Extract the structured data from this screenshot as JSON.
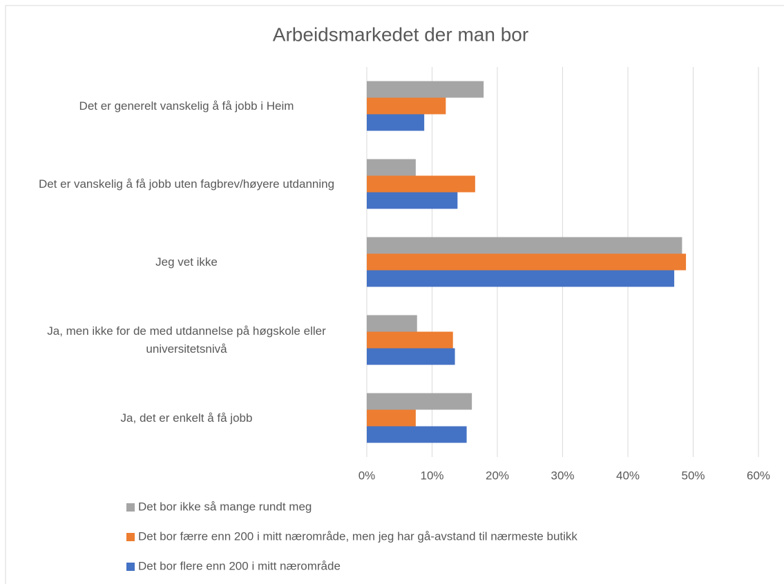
{
  "chart_data": {
    "type": "barh",
    "title": "Arbeidsmarkedet der man bor",
    "categories": [
      "Det er generelt vanskelig å få jobb i Heim",
      "Det er vanskelig å få jobb uten fagbrev/høyere utdanning",
      "Jeg vet ikke",
      "Ja, men ikke for de med utdannelse på høgskole eller universitetsnivå",
      "Ja, det er enkelt å få jobb"
    ],
    "series": [
      {
        "name": "Det bor ikke så mange rundt meg",
        "color": "#a5a5a5",
        "values": [
          17.9,
          7.5,
          48.3,
          7.7,
          16.1
        ]
      },
      {
        "name": "Det bor færre enn 200 i mitt nærområde, men jeg har gå-avstand til nærmeste butikk",
        "color": "#ed7d31",
        "values": [
          12.1,
          16.6,
          48.9,
          13.2,
          7.5
        ]
      },
      {
        "name": "Det bor flere enn 200 i mitt nærområde",
        "color": "#4472c4",
        "values": [
          8.8,
          13.9,
          47.1,
          13.5,
          15.3
        ]
      }
    ],
    "xlim": [
      0,
      60
    ],
    "xticks": [
      {
        "value": 0,
        "label": "0%"
      },
      {
        "value": 10,
        "label": "10%"
      },
      {
        "value": 20,
        "label": "20%"
      },
      {
        "value": 30,
        "label": "30%"
      },
      {
        "value": 40,
        "label": "40%"
      },
      {
        "value": 50,
        "label": "50%"
      },
      {
        "value": 60,
        "label": "60%"
      }
    ],
    "grid": true
  }
}
